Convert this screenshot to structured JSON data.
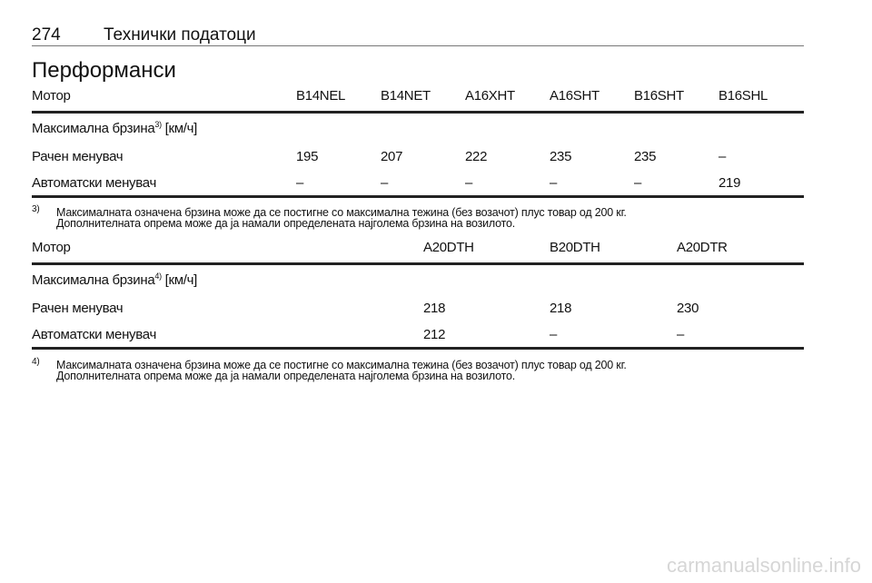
{
  "header": {
    "page_number": "274",
    "section": "Технички податоци"
  },
  "title": "Перформанси",
  "table1": {
    "columns": [
      "Мотор",
      "B14NEL",
      "B14NET",
      "A16XHT",
      "A16SHT",
      "B16SHT",
      "B16SHL"
    ],
    "group_label": "Максимална брзина",
    "group_sup": "3)",
    "group_unit": " [км/ч]",
    "rows": [
      [
        "Рачен менувач",
        "195",
        "207",
        "222",
        "235",
        "235",
        "–"
      ],
      [
        "Автоматски менувач",
        "–",
        "–",
        "–",
        "–",
        "–",
        "219"
      ]
    ]
  },
  "footnote1": {
    "mark": "3)",
    "line1": "Максималната означена брзина може да се постигне со максимална тежина (без возачот) плус товар од 200 кг.",
    "line2": "Дополнителната опрема може да ја намали определената најголема брзина на возилото."
  },
  "table2": {
    "columns": [
      "Мотор",
      "A20DTH",
      "B20DTH",
      "A20DTR"
    ],
    "group_label": "Максимална брзина",
    "group_sup": "4)",
    "group_unit": " [км/ч]",
    "rows": [
      [
        "Рачен менувач",
        "218",
        "218",
        "230"
      ],
      [
        "Автоматски менувач",
        "212",
        "–",
        "–"
      ]
    ]
  },
  "footnote2": {
    "mark": "4)",
    "line1": "Максималната означена брзина може да се постигне со максимална тежина (без возачот) плус товар од 200 кг.",
    "line2": "Дополнителната опрема може да ја намали определената најголема брзина на возилото."
  },
  "watermark": "carmanualsonline.info"
}
